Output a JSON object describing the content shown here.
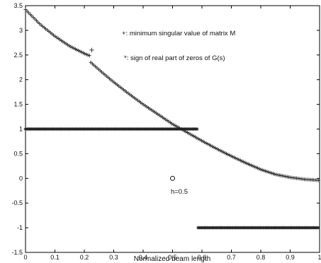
{
  "chart_data": {
    "type": "scatter",
    "xlabel": "Normalized beam length",
    "ylabel": "",
    "xlim": [
      0,
      1
    ],
    "ylim": [
      -1.5,
      3.5
    ],
    "x_ticks": [
      "0",
      "0.1",
      "0.2",
      "0.3",
      "0.4",
      "0.5",
      "0.6",
      "0.7",
      "0.8",
      "0.9",
      "1"
    ],
    "y_ticks": [
      "-1.5",
      "-1",
      "-0.5",
      "0",
      "0.5",
      "1",
      "1.5",
      "2",
      "2.5",
      "3",
      "3.5"
    ],
    "grid": false,
    "legend": [
      "+: minimum singular value of matrix M",
      "*: sign of real part of zeros of G(s)"
    ],
    "annotations": [
      {
        "text": "h=0.5",
        "x": 0.53,
        "y": -0.27
      }
    ],
    "marker_point": {
      "x": 0.5,
      "y": 0.0
    },
    "series": [
      {
        "marker": "+",
        "segments": [
          {
            "x": [
              0.0,
              0.05,
              0.1,
              0.15,
              0.2,
              0.22
            ],
            "y": [
              3.42,
              3.12,
              2.88,
              2.68,
              2.53,
              2.48
            ]
          },
          {
            "x": [
              0.222,
              0.26,
              0.3,
              0.35,
              0.4,
              0.45,
              0.5,
              0.55,
              0.6,
              0.65,
              0.7,
              0.75,
              0.8,
              0.85,
              0.9,
              0.95,
              1.0
            ],
            "y": [
              2.35,
              2.15,
              1.95,
              1.72,
              1.5,
              1.3,
              1.1,
              0.93,
              0.76,
              0.6,
              0.45,
              0.31,
              0.18,
              0.08,
              0.02,
              -0.02,
              -0.04
            ]
          }
        ],
        "extra_points": [
          {
            "x": 0.225,
            "y": 2.6
          }
        ]
      },
      {
        "marker": "*",
        "segments": [
          {
            "x": [
              0.0,
              0.587
            ],
            "y": [
              1,
              1
            ]
          },
          {
            "x": [
              0.587,
              1.0
            ],
            "y": [
              -1,
              -1
            ]
          }
        ]
      }
    ]
  }
}
